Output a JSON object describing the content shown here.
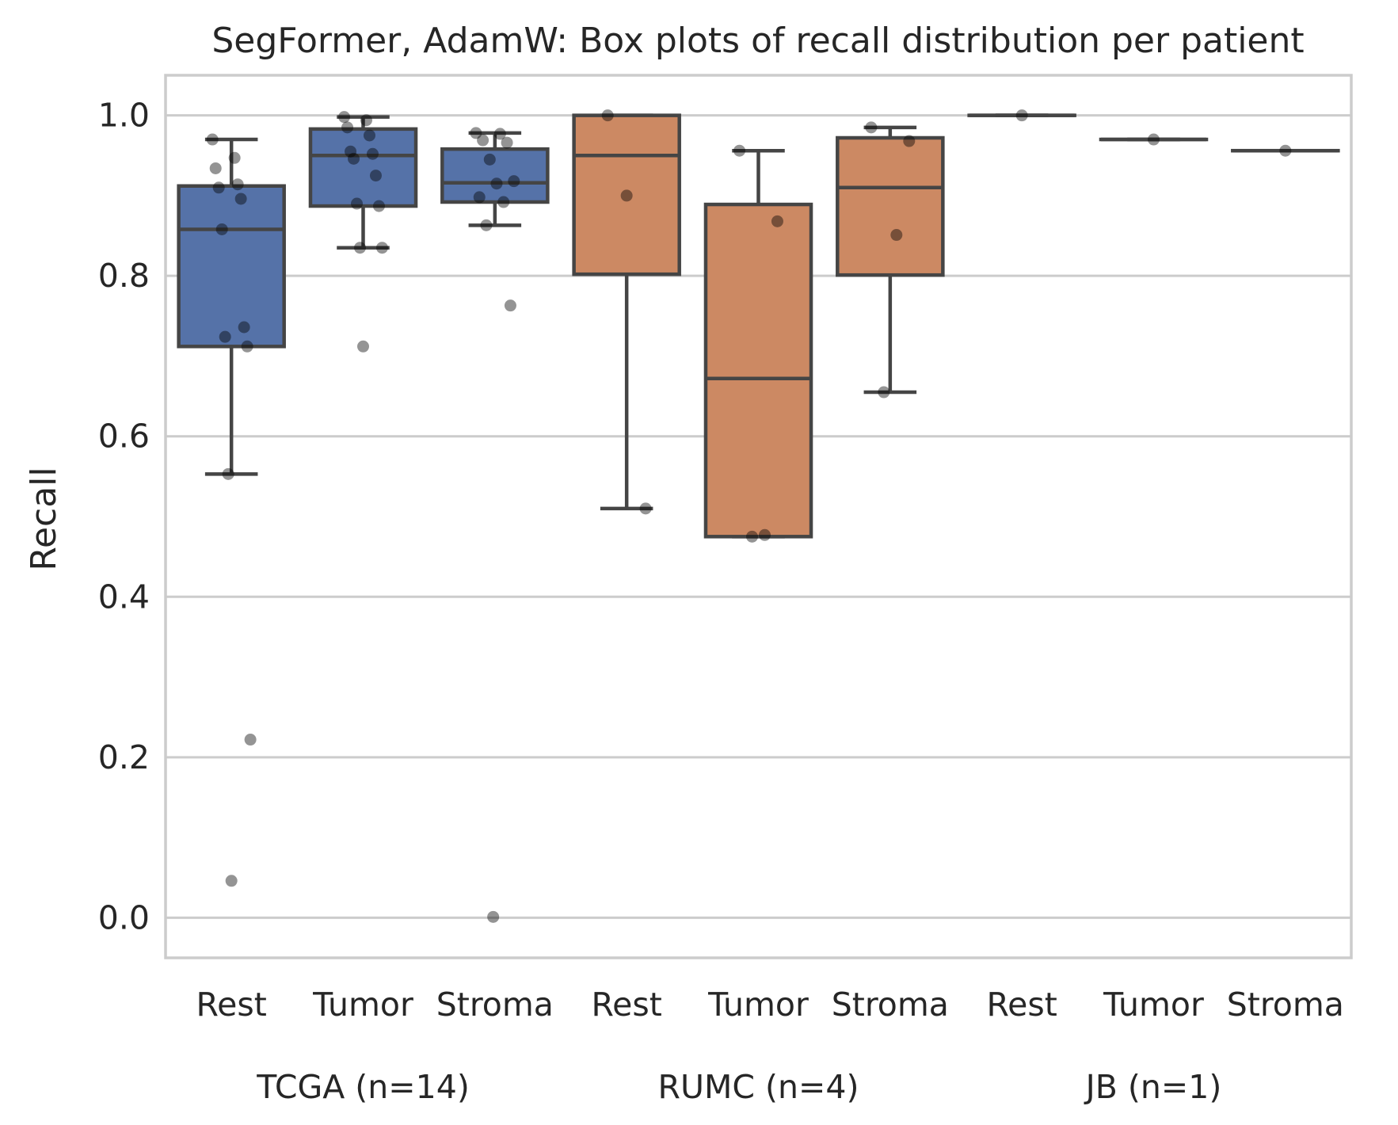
{
  "chart_data": {
    "type": "box",
    "title": "SegFormer, AdamW: Box plots of recall distribution per patient",
    "xlabel": "",
    "ylabel": "Recall",
    "ylim": [
      -0.05,
      1.05
    ],
    "yticks": [
      0.0,
      0.2,
      0.4,
      0.6,
      0.8,
      1.0
    ],
    "ytick_labels": [
      "0.0",
      "0.2",
      "0.4",
      "0.6",
      "0.8",
      "1.0"
    ],
    "grid": "horizontal",
    "categories": [
      "Rest",
      "Tumor",
      "Stroma",
      "Rest",
      "Tumor",
      "Stroma",
      "Rest",
      "Tumor",
      "Stroma"
    ],
    "groups": [
      {
        "label": "TCGA (n=14)",
        "color": "#5572a8"
      },
      {
        "label": "RUMC (n=4)",
        "color": "#cc8963"
      },
      {
        "label": "JB (n=1)",
        "color": "#5572a8"
      }
    ],
    "series": [
      {
        "group": 0,
        "category": "Rest",
        "q1": 0.712,
        "median": 0.858,
        "q3": 0.912,
        "whisker_low": 0.553,
        "whisker_high": 0.97,
        "points": [
          0.97,
          0.947,
          0.934,
          0.914,
          0.91,
          0.896,
          0.858,
          0.736,
          0.724,
          0.712,
          0.553,
          0.222,
          0.046
        ]
      },
      {
        "group": 0,
        "category": "Tumor",
        "q1": 0.887,
        "median": 0.95,
        "q3": 0.983,
        "whisker_low": 0.835,
        "whisker_high": 0.998,
        "points": [
          0.998,
          0.994,
          0.985,
          0.975,
          0.955,
          0.952,
          0.946,
          0.925,
          0.89,
          0.887,
          0.835,
          0.835,
          0.712
        ]
      },
      {
        "group": 0,
        "category": "Stroma",
        "q1": 0.892,
        "median": 0.916,
        "q3": 0.958,
        "whisker_low": 0.863,
        "whisker_high": 0.978,
        "points": [
          0.978,
          0.977,
          0.969,
          0.966,
          0.945,
          0.918,
          0.915,
          0.898,
          0.892,
          0.863,
          0.763,
          0.001
        ]
      },
      {
        "group": 1,
        "category": "Rest",
        "q1": 0.802,
        "median": 0.95,
        "q3": 1.0,
        "whisker_low": 0.51,
        "whisker_high": 1.0,
        "points": [
          1.0,
          0.9,
          0.51
        ]
      },
      {
        "group": 1,
        "category": "Tumor",
        "q1": 0.475,
        "median": 0.672,
        "q3": 0.889,
        "whisker_low": 0.475,
        "whisker_high": 0.956,
        "points": [
          0.956,
          0.868,
          0.477,
          0.475
        ]
      },
      {
        "group": 1,
        "category": "Stroma",
        "q1": 0.801,
        "median": 0.91,
        "q3": 0.972,
        "whisker_low": 0.655,
        "whisker_high": 0.985,
        "points": [
          0.985,
          0.968,
          0.851,
          0.655
        ]
      },
      {
        "group": 2,
        "category": "Rest",
        "q1": 1.0,
        "median": 1.0,
        "q3": 1.0,
        "whisker_low": 1.0,
        "whisker_high": 1.0,
        "points": [
          1.0
        ]
      },
      {
        "group": 2,
        "category": "Tumor",
        "q1": 0.97,
        "median": 0.97,
        "q3": 0.97,
        "whisker_low": 0.97,
        "whisker_high": 0.97,
        "points": [
          0.97
        ]
      },
      {
        "group": 2,
        "category": "Stroma",
        "q1": 0.956,
        "median": 0.956,
        "q3": 0.956,
        "whisker_low": 0.956,
        "whisker_high": 0.956,
        "points": [
          0.956
        ]
      }
    ]
  }
}
